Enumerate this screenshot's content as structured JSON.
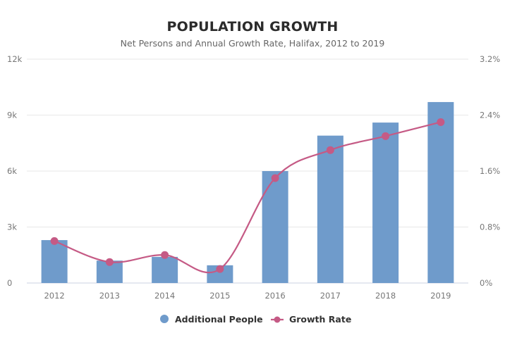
{
  "chart_data": {
    "type": "bar",
    "title": "POPULATION GROWTH",
    "subtitle": "Net Persons and Annual Growth Rate, Halifax, 2012 to 2019",
    "categories": [
      "2012",
      "2013",
      "2014",
      "2015",
      "2016",
      "2017",
      "2018",
      "2019"
    ],
    "series": [
      {
        "name": "Additional People",
        "type": "bar",
        "axis": "left",
        "color": "#6f9bcb",
        "values": [
          2300,
          1200,
          1400,
          950,
          6000,
          7900,
          8600,
          9700
        ]
      },
      {
        "name": "Growth Rate",
        "type": "line",
        "smooth": true,
        "axis": "right",
        "color": "#c55a85",
        "values": [
          0.6,
          0.3,
          0.4,
          0.2,
          1.5,
          1.9,
          2.1,
          2.3
        ]
      }
    ],
    "y_left": {
      "range": [
        0,
        12000
      ],
      "ticks": [
        0,
        3000,
        6000,
        9000,
        12000
      ],
      "tick_labels": [
        "0",
        "3k",
        "6k",
        "9k",
        "12k"
      ]
    },
    "y_right": {
      "range": [
        0,
        3.2
      ],
      "ticks": [
        0,
        0.8,
        1.6,
        2.4,
        3.2
      ],
      "tick_labels": [
        "0%",
        "0.8%",
        "1.6%",
        "2.4%",
        "3.2%"
      ]
    },
    "grid": true,
    "legend": "bottom"
  }
}
